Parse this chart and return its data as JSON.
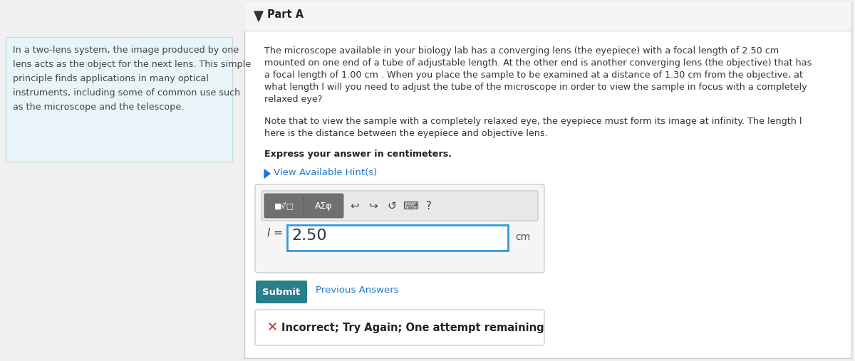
{
  "bg_color": "#f0f0f0",
  "left_panel_bg": "#e8f4f8",
  "left_panel_border": "#c5dce8",
  "right_panel_bg": "#ffffff",
  "right_panel_border": "#cccccc",
  "left_text": "In a two-lens system, the image produced by one\nlens acts as the object for the next lens. This simple\nprinciple finds applications in many optical\ninstruments, including some of common use such\nas the microscope and the telescope.",
  "part_a_label": "Part A",
  "main_paragraph_1": "The microscope available in your biology lab has a converging lens (the eyepiece) with a focal length of 2.50 ",
  "main_paragraph_1b": "cm",
  "main_paragraph_2": "mounted on one end of a tube of adjustable length. At the other end is another converging lens (the objective) that has",
  "main_paragraph_3": "a focal length of 1.00 ",
  "main_paragraph_3b": "cm",
  "main_paragraph_3c": " . When you place the sample to be examined at a distance of 1.30 ",
  "main_paragraph_3d": "cm",
  "main_paragraph_3e": " from the objective, at",
  "main_paragraph_4": "what length l will you need to adjust the tube of the microscope in order to view the sample in focus with a completely",
  "main_paragraph_5": "relaxed eye?",
  "note_1": "Note that to view the sample with a completely relaxed eye, the eyepiece must form its image at infinity. The length l",
  "note_2": "here is the distance between the eyepiece and objective lens.",
  "bold_line": "Express your answer in centimeters.",
  "hint_text": "View Available Hint(s)",
  "hint_color": "#2277cc",
  "input_value": "2.50",
  "input_label": "l =",
  "input_unit": "cm",
  "submit_label": "Submit",
  "submit_bg": "#297f8c",
  "submit_color": "#ffffff",
  "prev_answers_label": "Previous Answers",
  "prev_answers_color": "#2277cc",
  "error_text": "Incorrect; Try Again; One attempt remaining",
  "error_color": "#cc2222",
  "error_box_border": "#cccccc",
  "error_box_bg": "#ffffff",
  "input_border_color": "#3399dd",
  "toolbar_btn_bg": "#777777",
  "toolbar_area_bg": "#f0f0f0",
  "toolbar_box_bg": "#f5f5f5",
  "toolbar_box_border": "#cccccc",
  "divider_color": "#cccccc",
  "part_a_bar_bg": "#f5f5f5",
  "part_a_bar_border": "#dddddd",
  "font_size_main": 9.2,
  "font_size_left": 9.2,
  "font_size_bold": 9.2,
  "font_size_hint": 9.5,
  "font_size_input_val": 16,
  "font_size_submit": 9.5,
  "font_size_error": 10.5,
  "font_size_parta": 10.5
}
